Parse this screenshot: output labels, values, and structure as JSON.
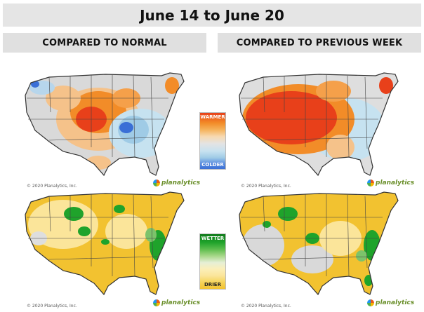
{
  "title": "June 14 to June 20",
  "columns": {
    "left": "COMPARED TO NORMAL",
    "right": "COMPARED TO PREVIOUS WEEK"
  },
  "maps": {
    "temp_normal": {
      "copyright": "© 2020 Planalytics, Inc.",
      "logo": "planalytics"
    },
    "temp_prev": {
      "copyright": "© 2020 Planalytics, Inc.",
      "logo": "planalytics"
    },
    "precip_normal": {
      "copyright": "© 2020 Planalytics, Inc.",
      "logo": "planalytics"
    },
    "precip_prev": {
      "copyright": "© 2020 Planalytics, Inc.",
      "logo": "planalytics"
    }
  },
  "legends": {
    "temperature": {
      "top_label": "WARMER",
      "bottom_label": "COLDER"
    },
    "precipitation": {
      "top_label": "WETTER",
      "bottom_label": "DRIER"
    }
  },
  "colors": {
    "warm": "#e8401a",
    "hot_orange": "#f28c28",
    "cool": "#a8d4ea",
    "cold": "#3a6fd6",
    "neutral": "#d9d9d9",
    "wet": "#1fa32b",
    "dry": "#f2c230",
    "dry_light": "#fbe59a"
  }
}
